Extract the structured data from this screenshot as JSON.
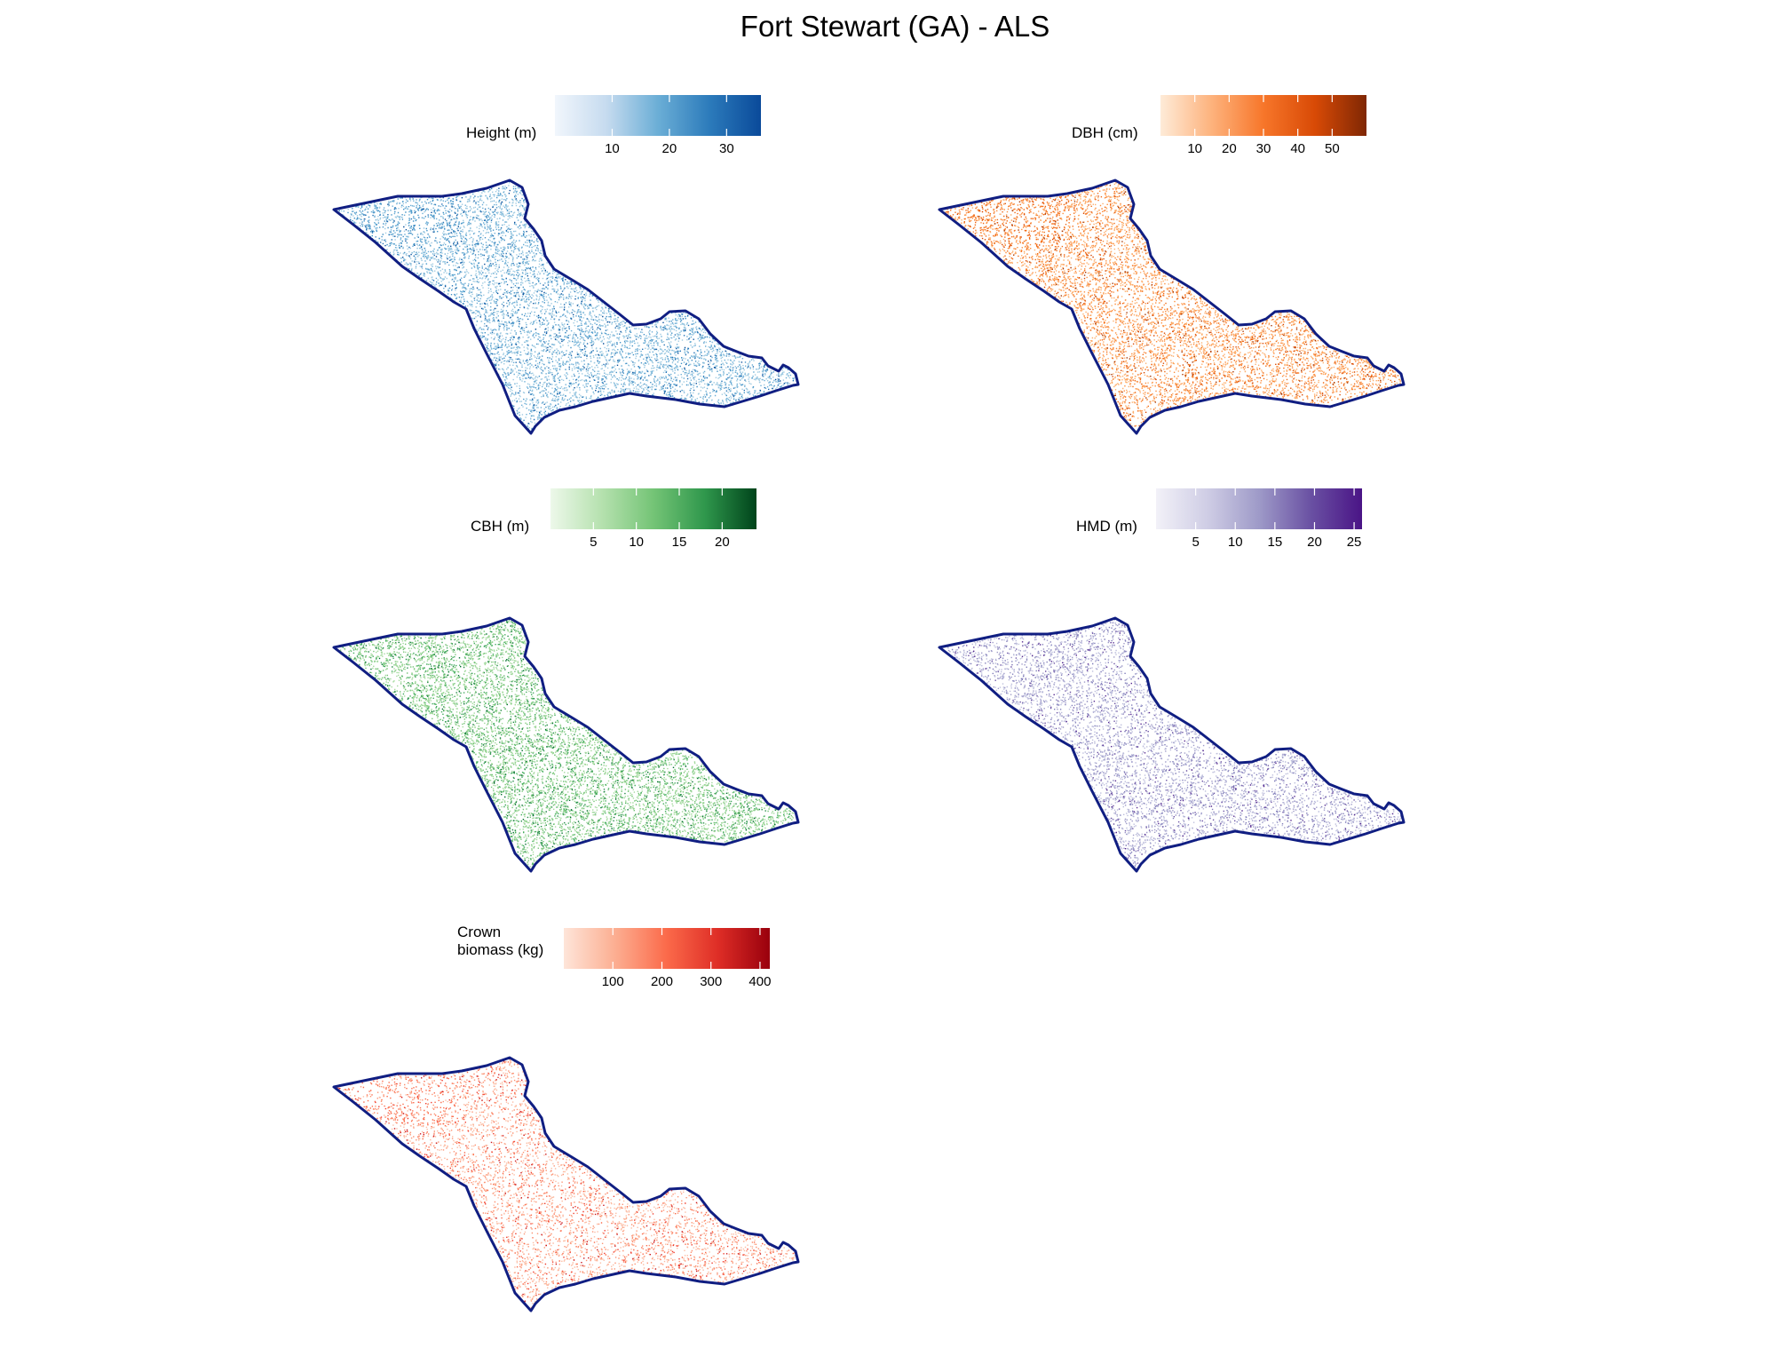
{
  "title": "Fort Stewart (GA) - ALS",
  "boundary_color": "#101E82",
  "panels": [
    {
      "id": "height",
      "legend_title": [
        "Height (m)"
      ],
      "colors": [
        "#F1F6FC",
        "#C6DBEF",
        "#6BAED6",
        "#2C7BBB",
        "#0A4A9A"
      ],
      "dot_colors": [
        "#6BAED6",
        "#4292C6",
        "#2171B5",
        "#9ECAE1",
        "#08519C"
      ],
      "range": [
        0,
        36
      ],
      "ticks": [
        10,
        20,
        30
      ],
      "density": 6500
    },
    {
      "id": "dbh",
      "legend_title": [
        "DBH (cm)"
      ],
      "colors": [
        "#FEEBD8",
        "#FDB27C",
        "#F7762A",
        "#D84A06",
        "#7F2704"
      ],
      "dot_colors": [
        "#FD8D3C",
        "#F16913",
        "#D94801",
        "#FDAE6B",
        "#A63603"
      ],
      "range": [
        0,
        60
      ],
      "ticks": [
        10,
        20,
        30,
        40,
        50
      ],
      "density": 6500
    },
    {
      "id": "cbh",
      "legend_title": [
        "CBH (m)"
      ],
      "colors": [
        "#EDF8EA",
        "#B5E1AE",
        "#74C476",
        "#2F974C",
        "#00441B"
      ],
      "dot_colors": [
        "#74C476",
        "#41AB5D",
        "#238B45",
        "#A1D99B",
        "#006D2C"
      ],
      "range": [
        0,
        24
      ],
      "ticks": [
        5,
        10,
        15,
        20
      ],
      "density": 7500
    },
    {
      "id": "hmd",
      "legend_title": [
        "HMD (m)"
      ],
      "colors": [
        "#F2F1F8",
        "#CFCDE5",
        "#9E9AC8",
        "#6A51A3",
        "#4A1486"
      ],
      "dot_colors": [
        "#9E9AC8",
        "#807DBA",
        "#6A51A3",
        "#BCBDDC",
        "#54278F"
      ],
      "range": [
        0,
        26
      ],
      "ticks": [
        5,
        10,
        15,
        20,
        25
      ],
      "density": 5500
    },
    {
      "id": "crown-biomass",
      "legend_title": [
        "Crown",
        "biomass (kg)"
      ],
      "colors": [
        "#FEE5D9",
        "#FCAE91",
        "#FB6A4A",
        "#DE2D26",
        "#99000D"
      ],
      "dot_colors": [
        "#FC9272",
        "#FB6A4A",
        "#EF3B2C",
        "#FCBBA1",
        "#CB181D"
      ],
      "range": [
        0,
        420
      ],
      "ticks": [
        100,
        200,
        300,
        400
      ],
      "density": 4500
    }
  ]
}
